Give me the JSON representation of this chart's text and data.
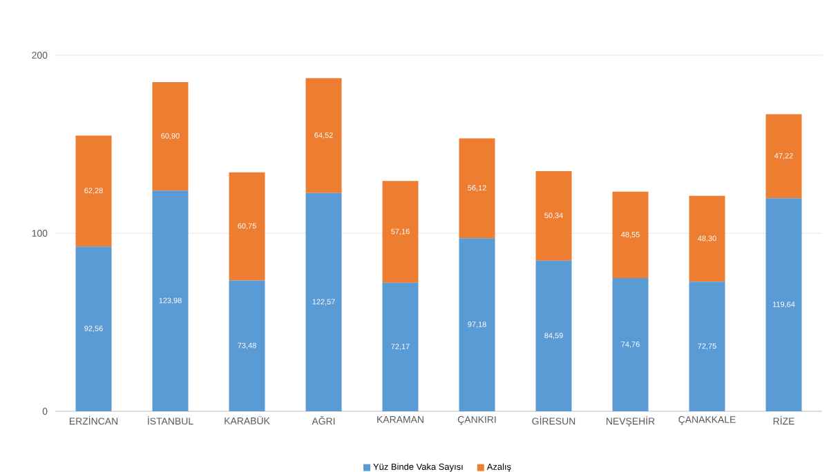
{
  "chart_data": {
    "type": "bar",
    "stacked": true,
    "categories": [
      "ERZİNCAN",
      "İSTANBUL",
      "KARABÜK",
      "AĞRI",
      "KARAMAN",
      "ÇANKIRI",
      "GİRESUN",
      "NEVŞEHİR",
      "ÇANAKKALE",
      "RİZE"
    ],
    "series": [
      {
        "name": "Yüz Binde Vaka Sayısı",
        "color": "#5b9bd5",
        "values": [
          92.56,
          123.98,
          73.48,
          122.57,
          72.17,
          97.18,
          84.59,
          74.76,
          72.75,
          119.64
        ],
        "value_labels": [
          "92,56",
          "123,98",
          "73,48",
          "122,57",
          "72,17",
          "97,18",
          "84,59",
          "74,76",
          "72,75",
          "119,64"
        ]
      },
      {
        "name": "Azalış",
        "color": "#ed7d31",
        "values": [
          62.28,
          60.9,
          60.75,
          64.52,
          57.16,
          56.12,
          50.34,
          48.55,
          48.3,
          47.22
        ],
        "value_labels": [
          "62,28",
          "60,90",
          "60,75",
          "64,52",
          "57,16",
          "56,12",
          "50,34",
          "48,55",
          "48,30",
          "47,22"
        ]
      }
    ],
    "ylim": [
      0,
      200
    ],
    "yticks": [
      0,
      100,
      200
    ],
    "grid": "y",
    "legend": "bottom"
  }
}
